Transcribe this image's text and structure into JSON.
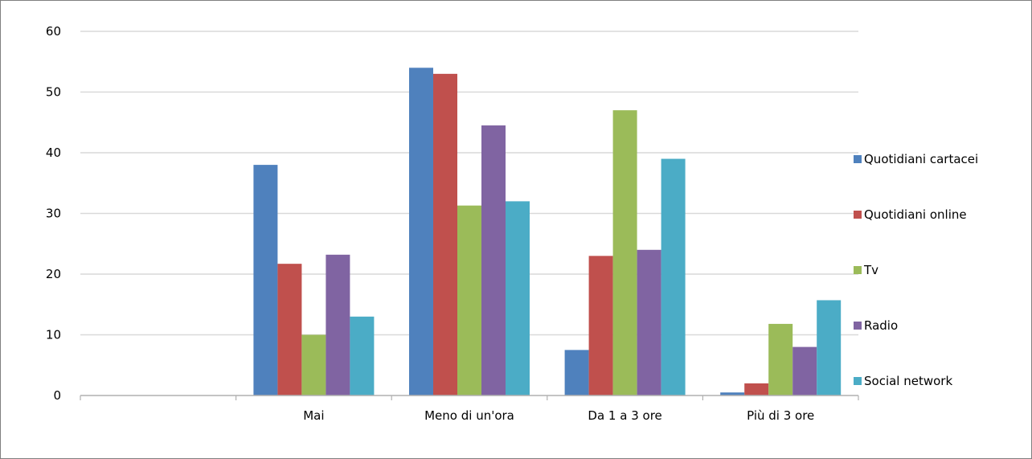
{
  "chart_data": {
    "type": "bar",
    "categories": [
      "",
      "Mai",
      "Meno di un'ora",
      "Da 1 a 3 ore",
      "Più di 3 ore"
    ],
    "series": [
      {
        "name": "Quotidiani cartacei",
        "color": "#4f81bd",
        "values": [
          null,
          38,
          54,
          7.5,
          0.5
        ]
      },
      {
        "name": "Quotidiani online",
        "color": "#c0504d",
        "values": [
          null,
          21.7,
          53,
          23,
          2
        ]
      },
      {
        "name": "Tv",
        "color": "#9bbb59",
        "values": [
          null,
          10,
          31.3,
          47,
          11.8
        ]
      },
      {
        "name": "Radio",
        "color": "#8064a2",
        "values": [
          null,
          23.2,
          44.5,
          24,
          8
        ]
      },
      {
        "name": "Social network",
        "color": "#4bacc6",
        "values": [
          null,
          13,
          32,
          39,
          15.7
        ]
      }
    ],
    "y_ticks": [
      0,
      10,
      20,
      30,
      40,
      50,
      60
    ],
    "ylim": [
      0,
      60
    ],
    "grid": true,
    "legend": "right"
  }
}
